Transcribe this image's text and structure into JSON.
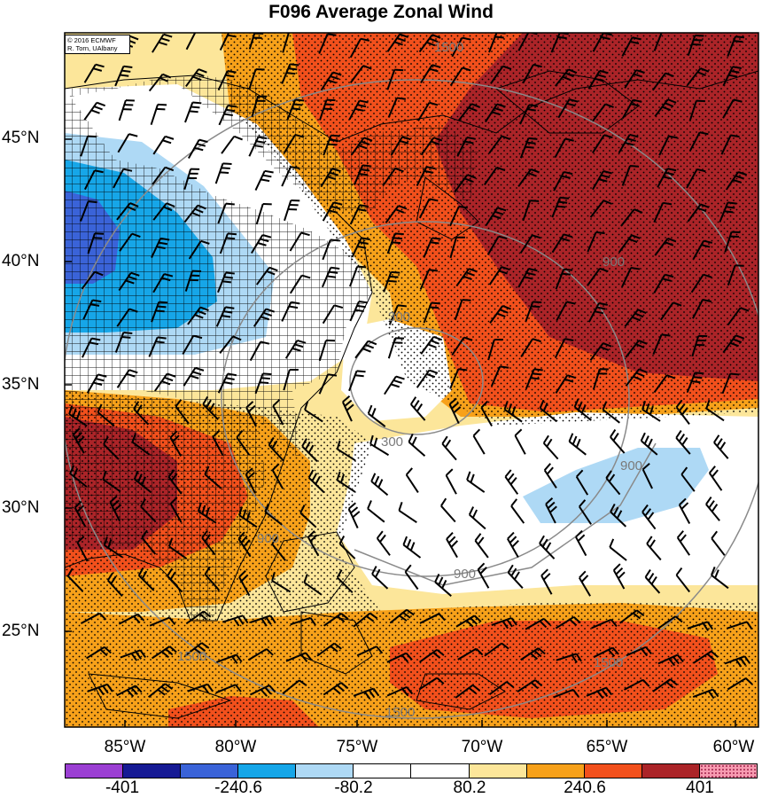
{
  "title": "F096 Average Zonal Wind",
  "credit": {
    "line1": "© 2016 ECMWF",
    "line2": "R. Torn, UAlbany"
  },
  "lat_labels": [
    "45°N",
    "40°N",
    "35°N",
    "30°N",
    "25°N"
  ],
  "lon_labels": [
    "85°W",
    "80°W",
    "75°W",
    "70°W",
    "65°W",
    "60°W"
  ],
  "contour_labels": [
    "1500",
    "900",
    "300",
    "300",
    "900",
    "900",
    "900",
    "1500",
    "1500",
    "1500"
  ],
  "colorbar": {
    "labels": [
      "-401",
      "-240.6",
      "-80.2",
      "80.2",
      "240.6",
      "401"
    ],
    "colors": [
      "#9b3fd3",
      "#161a94",
      "#3a63d8",
      "#16a6e8",
      "#aed9f5",
      "#ffffff",
      "#ffffff",
      "#fce69a",
      "#f7a11a",
      "#f2501c",
      "#ab2428",
      "#f79bb1"
    ]
  },
  "colors": {
    "white": "#ffffff",
    "light_blue": "#aed9f5",
    "cyan": "#16a6e8",
    "blue": "#3a63d8",
    "pale_yellow": "#fce69a",
    "orange": "#f7a11a",
    "red_orange": "#f2501c",
    "dark_red": "#ab2428"
  }
}
